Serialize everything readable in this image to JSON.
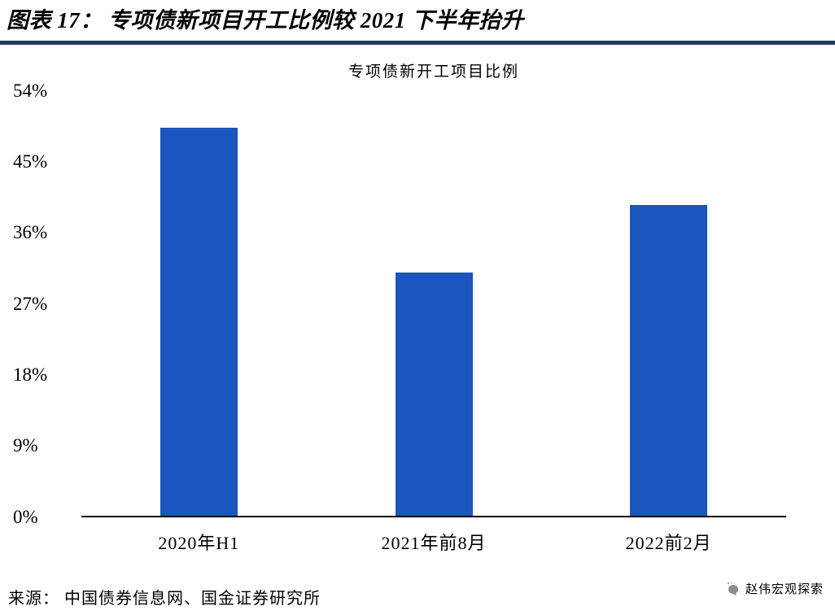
{
  "page": {
    "header": {
      "title": "图表 17：  专项债新项目开工比例较 2021 下半年抬升"
    },
    "footer": {
      "source": "来源： 中国债券信息网、国金证券研究所",
      "watermark": "赵伟宏观探索"
    },
    "colors": {
      "bar": "#1A56BE",
      "title_rule": "#1F3864",
      "axis": "#000000",
      "watermark": "#8C8C8C"
    }
  },
  "chart_data": {
    "type": "bar",
    "title": "专项债新开工项目比例",
    "categories": [
      "2020年H1",
      "2021年前8月",
      "2022前2月"
    ],
    "values": [
      49.3,
      30.9,
      39.5
    ],
    "unit": "%",
    "ylim": [
      0,
      54
    ],
    "yticks": [
      54,
      45,
      36,
      27,
      18,
      9,
      0
    ],
    "ytick_labels": [
      "54%",
      "45%",
      "36%",
      "27%",
      "18%",
      "9%",
      "0%"
    ],
    "xlabel": "",
    "ylabel": "",
    "grid": false,
    "legend": "none",
    "bar_color": "#1A56BE"
  }
}
